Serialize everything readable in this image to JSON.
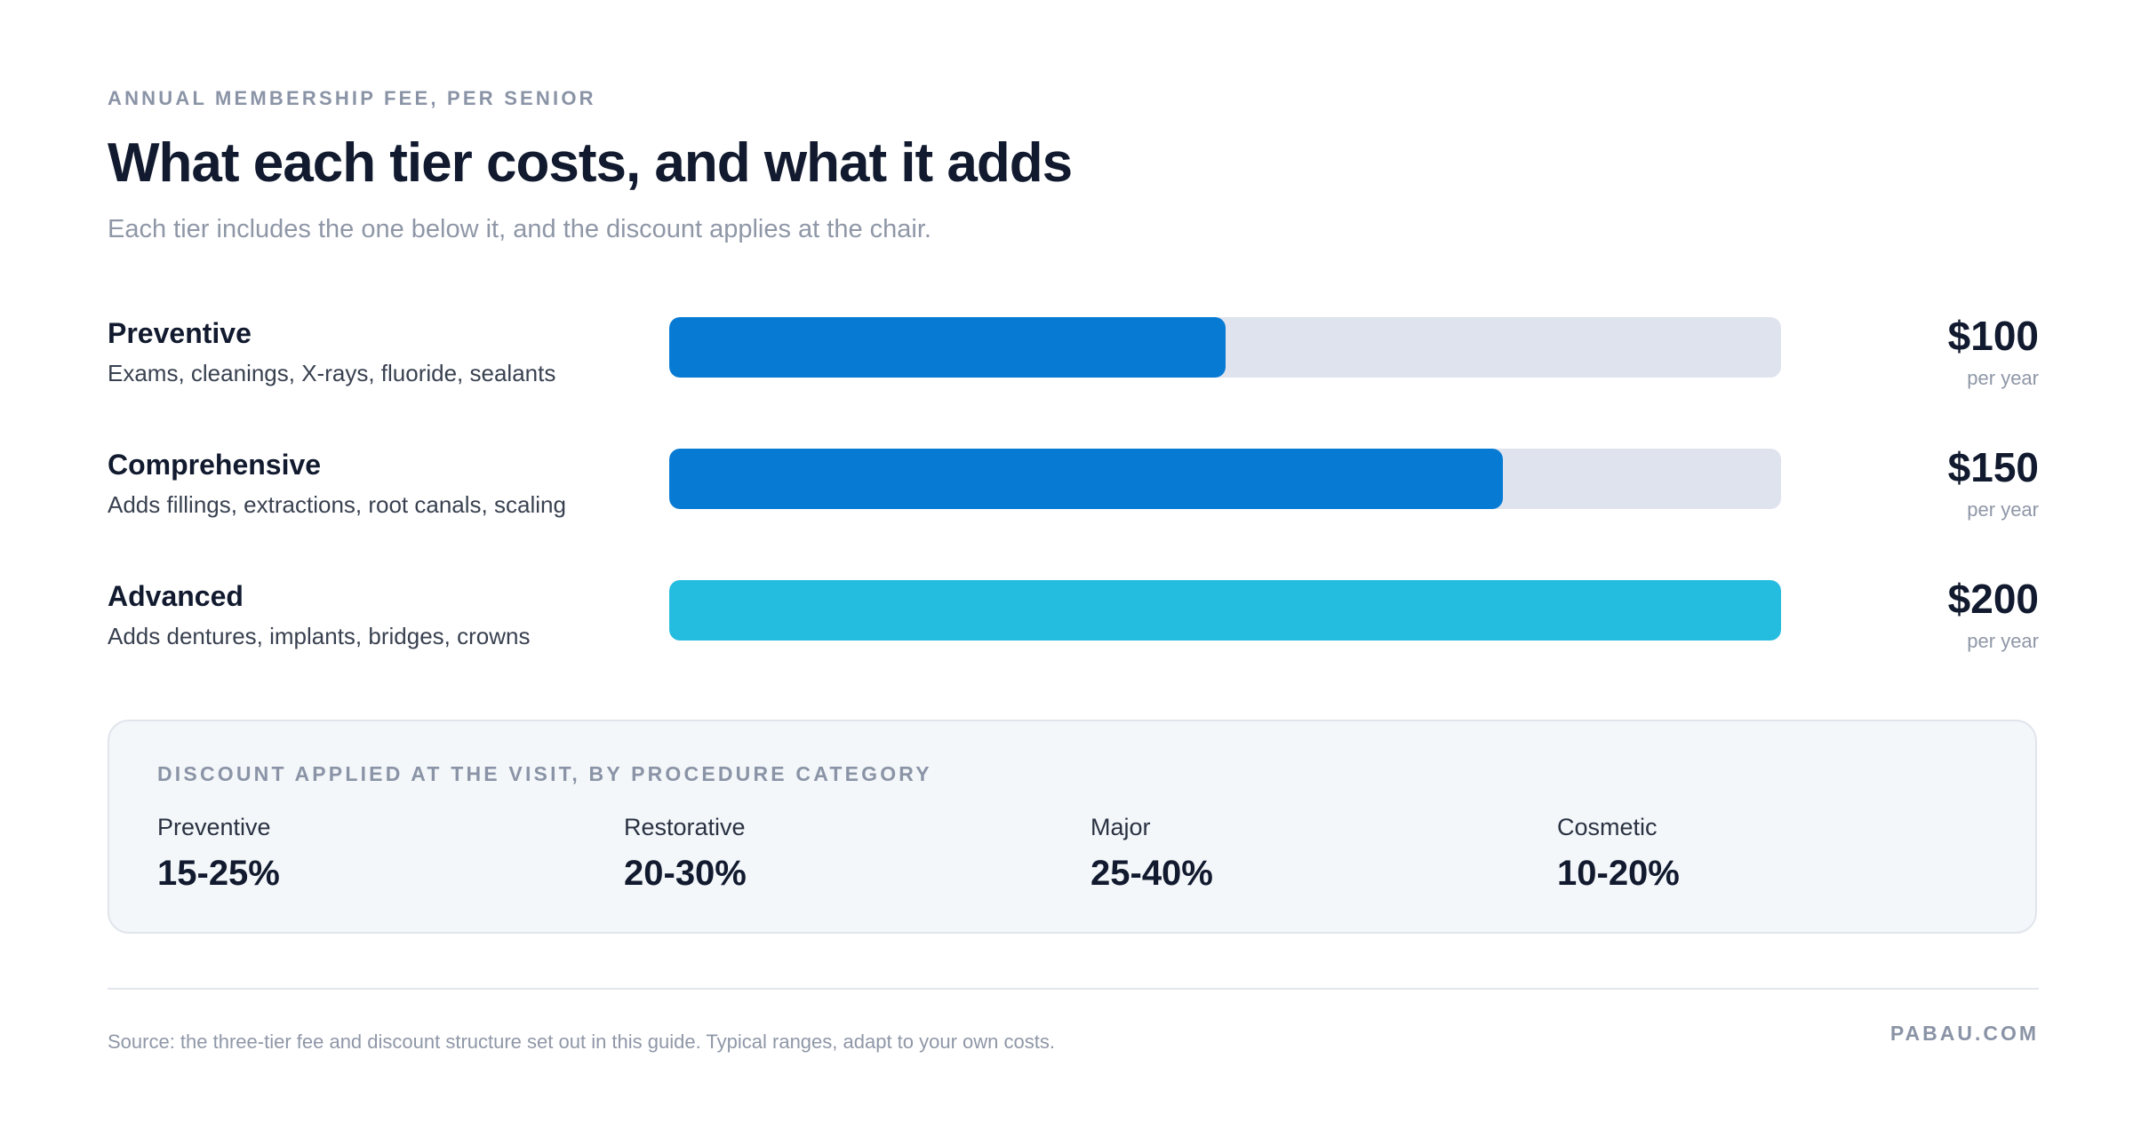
{
  "header": {
    "eyebrow": "ANNUAL MEMBERSHIP FEE, PER SENIOR",
    "title": "What each tier costs, and what it adds",
    "subtitle": "Each tier includes the one below it, and the discount applies at the chair."
  },
  "chart_data": {
    "type": "bar",
    "orientation": "horizontal",
    "title": "What each tier costs, and what it adds",
    "subtitle": "Each tier includes the one below it, and the discount applies at the chair.",
    "categories": [
      "Preventive",
      "Comprehensive",
      "Advanced"
    ],
    "values": [
      100,
      150,
      200
    ],
    "xlim": [
      0,
      200
    ],
    "grid": false,
    "unit_suffix": "per year",
    "bars": [
      {
        "name": "Preventive",
        "description": "Exams, cleanings, X-rays, fluoride, sealants",
        "value": 100,
        "value_label": "$100",
        "unit": "per year",
        "color": "#077BD4"
      },
      {
        "name": "Comprehensive",
        "description": "Adds fillings, extractions, root canals, scaling",
        "value": 150,
        "value_label": "$150",
        "unit": "per year",
        "color": "#077BD4"
      },
      {
        "name": "Advanced",
        "description": "Adds dentures, implants, bridges, crowns",
        "value": 200,
        "value_label": "$200",
        "unit": "per year",
        "color": "#24BDE0"
      }
    ]
  },
  "discounts": {
    "title": "DISCOUNT APPLIED AT THE VISIT, BY PROCEDURE CATEGORY",
    "items": [
      {
        "label": "Preventive",
        "value": "15-25%"
      },
      {
        "label": "Restorative",
        "value": "20-30%"
      },
      {
        "label": "Major",
        "value": "25-40%"
      },
      {
        "label": "Cosmetic",
        "value": "10-20%"
      }
    ]
  },
  "footer": {
    "source": "Source: the three-tier fee and discount structure set out in this guide. Typical ranges, adapt to your own costs.",
    "brand": "PABAU.COM"
  },
  "colors": {
    "primary_bar": "#077BD4",
    "highlight_bar": "#24BDE0",
    "track": "#DFE3ED",
    "heading": "#111A2E",
    "muted": "#8A94A6"
  }
}
